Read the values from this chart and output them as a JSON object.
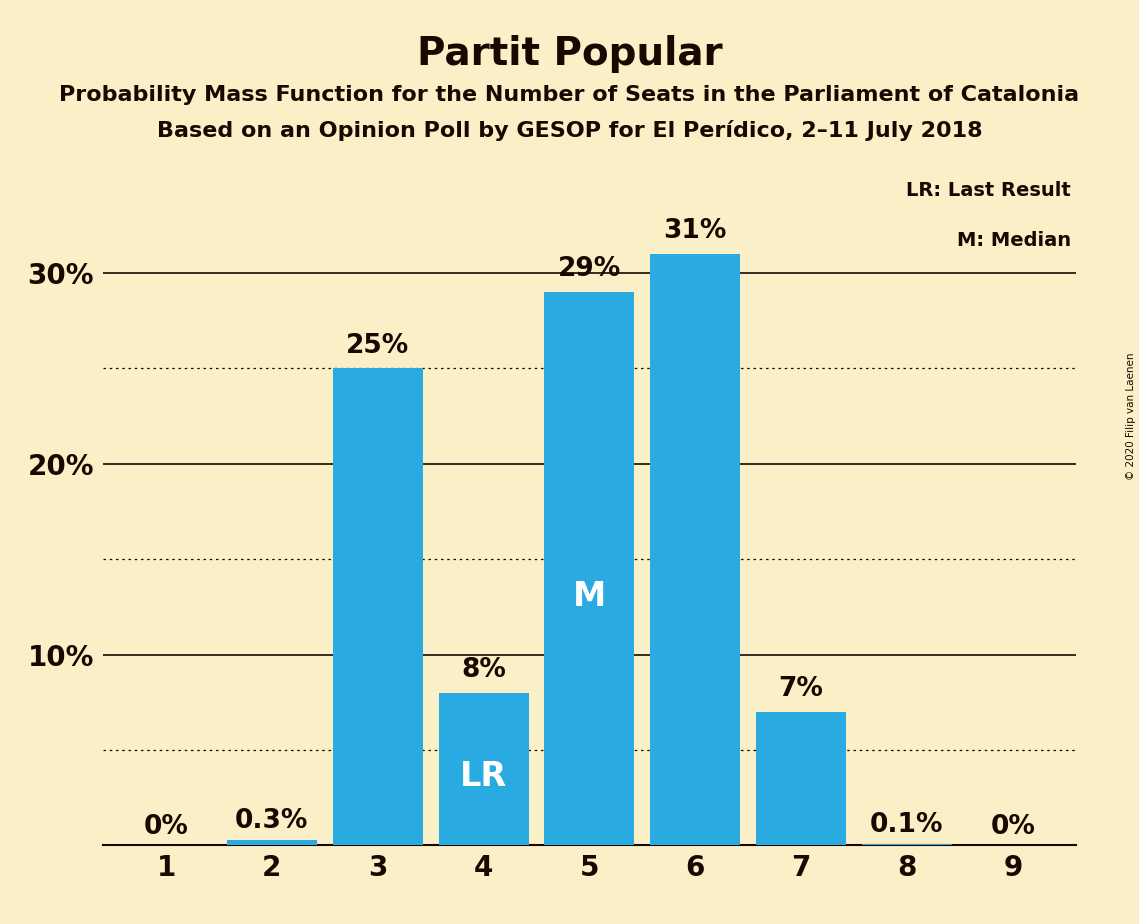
{
  "title": "Partit Popular",
  "subtitle1": "Probability Mass Function for the Number of Seats in the Parliament of Catalonia",
  "subtitle2": "Based on an Opinion Poll by GESOP for El Perídico, 2–11 July 2018",
  "copyright": "© 2020 Filip van Laenen",
  "categories": [
    1,
    2,
    3,
    4,
    5,
    6,
    7,
    8,
    9
  ],
  "values": [
    0.0,
    0.3,
    25.0,
    8.0,
    29.0,
    31.0,
    7.0,
    0.1,
    0.0
  ],
  "bar_color": "#29ABE2",
  "background_color": "#FAF0C8",
  "label_values": [
    "0%",
    "0.3%",
    "25%",
    "8%",
    "29%",
    "31%",
    "7%",
    "0.1%",
    "0%"
  ],
  "median_bar": 5,
  "lr_bar": 4,
  "median_label": "M",
  "lr_label": "LR",
  "legend_lr": "LR: Last Result",
  "legend_m": "M: Median",
  "ylim": [
    0,
    35
  ],
  "ytick_positions": [
    10,
    20,
    30
  ],
  "ytick_labels": [
    "10%",
    "20%",
    "30%"
  ],
  "solid_gridlines": [
    10,
    20,
    30
  ],
  "dotted_gridlines": [
    5,
    15,
    25
  ],
  "title_fontsize": 28,
  "subtitle_fontsize": 16,
  "bar_label_fontsize": 19,
  "axis_tick_fontsize": 20,
  "inner_label_fontsize": 24,
  "text_color": "#1a0800",
  "grid_color": "#1a0800"
}
